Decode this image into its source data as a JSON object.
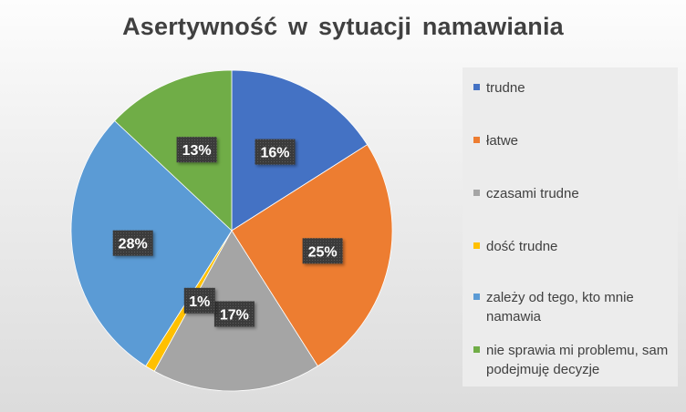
{
  "chart_data": {
    "type": "pie",
    "title": "Asertywność  w sytuacji namawiania",
    "slices": [
      {
        "label": "trudne",
        "value": 16,
        "value_label": "16%",
        "color": "#4472C4"
      },
      {
        "label": " łatwe",
        "value": 25,
        "value_label": "25%",
        "color": "#ED7D31"
      },
      {
        "label": "czasami trudne",
        "value": 17,
        "value_label": "17%",
        "color": "#A5A5A5"
      },
      {
        "label": "dość trudne",
        "value": 1,
        "value_label": "1%",
        "color": "#FFC000"
      },
      {
        "label": "zależy od tego, kto mnie namawia",
        "value": 28,
        "value_label": "28%",
        "color": "#5B9BD5"
      },
      {
        "label": "nie sprawia mi problemu, sam podejmuję decyzje",
        "value": 13,
        "value_label": "13%",
        "color": "#70AD47"
      }
    ],
    "legend_position": "right",
    "data_label_style": "dark-box"
  }
}
